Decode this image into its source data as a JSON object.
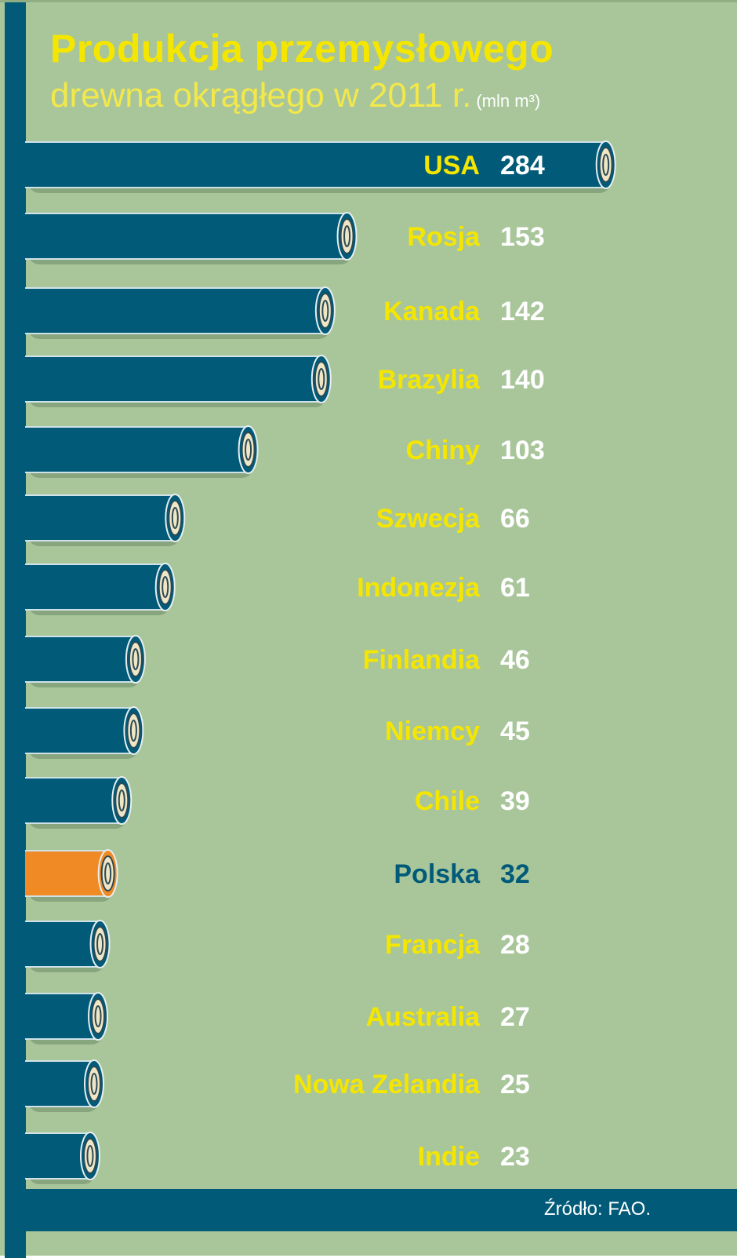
{
  "title": "Produkcja przemysłowego",
  "subtitle": "drewna okrągłego w 2011 r.",
  "unit": "(mln m³)",
  "source": "Źródło: FAO.",
  "colors": {
    "background": "#a9c69b",
    "bar": "#005a78",
    "highlight_bar": "#f08a24",
    "label": "#f5e600",
    "highlight_label": "#005a78",
    "value": "#ffffff"
  },
  "chart_data": {
    "type": "bar",
    "orientation": "horizontal",
    "title": "Produkcja przemysłowego drewna okrągłego w 2011 r.",
    "unit": "(mln m³)",
    "categories": [
      "USA",
      "Rosja",
      "Kanada",
      "Brazylia",
      "Chiny",
      "Szwecja",
      "Indonezja",
      "Finlandia",
      "Niemcy",
      "Chile",
      "Polska",
      "Francja",
      "Australia",
      "Nowa Zelandia",
      "Indie"
    ],
    "values": [
      284,
      153,
      142,
      140,
      103,
      66,
      61,
      46,
      45,
      39,
      32,
      28,
      27,
      25,
      23
    ],
    "highlight": "Polska",
    "grid": false
  }
}
